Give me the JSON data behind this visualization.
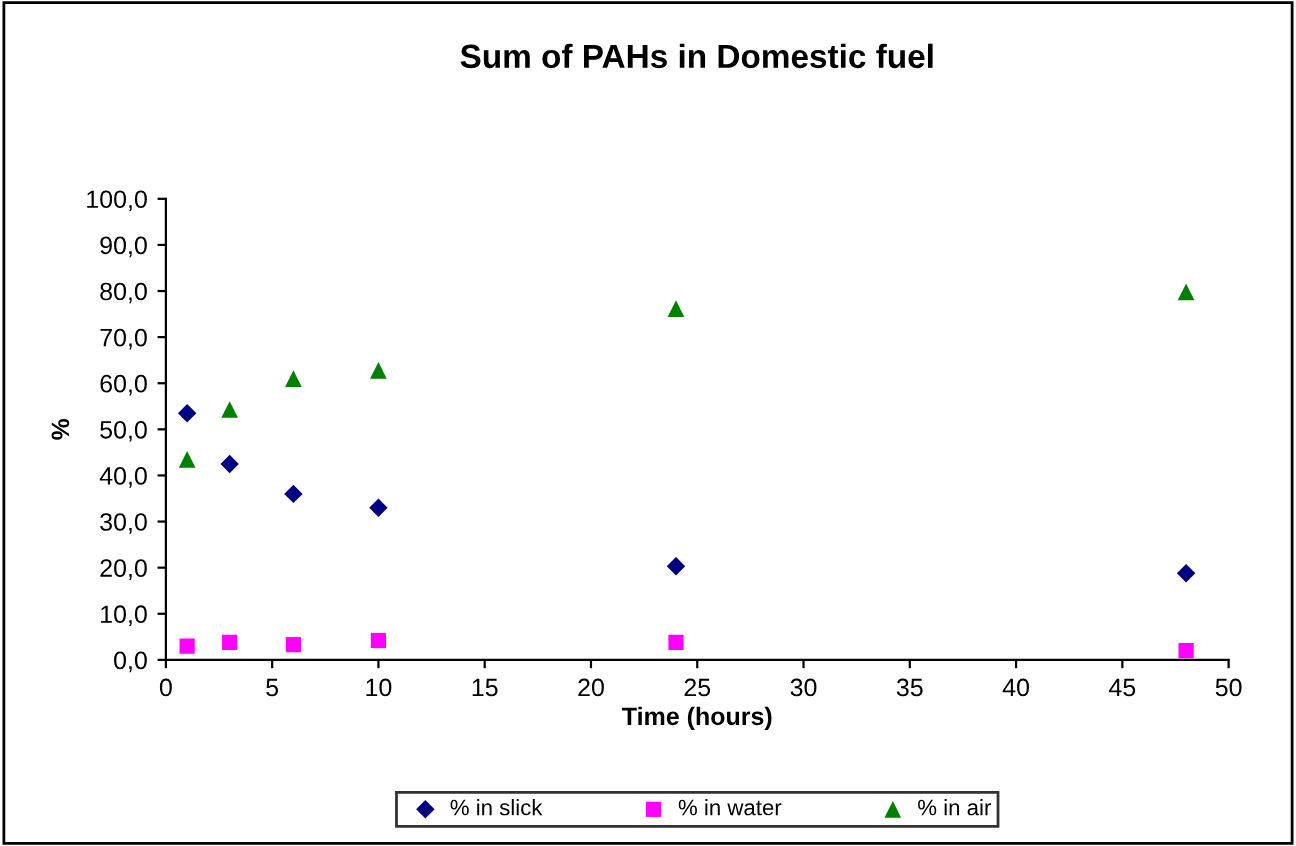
{
  "chart_data": {
    "type": "scatter",
    "title": "Sum of PAHs in Domestic fuel",
    "xlabel": "Time (hours)",
    "ylabel": "%",
    "x": [
      1,
      3,
      6,
      10,
      24,
      48
    ],
    "series": [
      {
        "name": "% in slick",
        "color": "#000080",
        "marker": "diamond",
        "values": [
          53.5,
          42.5,
          36.0,
          33.0,
          20.3,
          18.8
        ]
      },
      {
        "name": "% in water",
        "color": "#ff00ff",
        "marker": "square",
        "values": [
          3.0,
          3.8,
          3.3,
          4.2,
          3.8,
          2.0
        ]
      },
      {
        "name": "% in air",
        "color": "#008000",
        "marker": "triangle",
        "values": [
          43.5,
          54.3,
          61.0,
          62.8,
          76.2,
          79.8
        ]
      }
    ],
    "xlim": [
      0,
      50
    ],
    "xticks": [
      0,
      5,
      10,
      15,
      20,
      25,
      30,
      35,
      40,
      45,
      50
    ],
    "ylim": [
      0,
      100
    ],
    "yticks": [
      {
        "value": 0,
        "label": "0,0"
      },
      {
        "value": 10,
        "label": "10,0"
      },
      {
        "value": 20,
        "label": "20,0"
      },
      {
        "value": 30,
        "label": "30,0"
      },
      {
        "value": 40,
        "label": "40,0"
      },
      {
        "value": 50,
        "label": "50,0"
      },
      {
        "value": 60,
        "label": "60,0"
      },
      {
        "value": 70,
        "label": "70,0"
      },
      {
        "value": 80,
        "label": "80,0"
      },
      {
        "value": 90,
        "label": "90,0"
      },
      {
        "value": 100,
        "label": "100,0"
      }
    ],
    "grid": false,
    "legend": "bottom"
  }
}
